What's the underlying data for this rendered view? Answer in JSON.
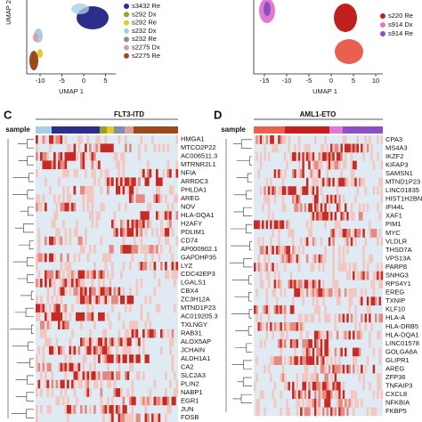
{
  "panel_a": {
    "y_label": "UMAP 2",
    "x_label": "UMAP 1",
    "xticks": [
      "-10",
      "-5",
      "0",
      "5"
    ],
    "legend": [
      {
        "name": "s3432 Re",
        "color": "#2b2f8a"
      },
      {
        "name": "s292 Dx",
        "color": "#9aa02a"
      },
      {
        "name": "s292 Re",
        "color": "#e4c92a"
      },
      {
        "name": "s232 Dx",
        "color": "#a9cde6"
      },
      {
        "name": "s232 Re",
        "color": "#7e8fa8"
      },
      {
        "name": "s2275 Dx",
        "color": "#d9a0a0"
      },
      {
        "name": "s2275 Re",
        "color": "#9a4a1c"
      }
    ]
  },
  "panel_b": {
    "x_label": "UMAP 1",
    "xticks": [
      "-15",
      "-10",
      "-5",
      "0",
      "5",
      "10"
    ],
    "legend": [
      {
        "name": "s220 Re",
        "color": "#c0201e"
      },
      {
        "name": "s914 Dx",
        "color": "#e07ad0"
      },
      {
        "name": "s914 Re",
        "color": "#8a4fc0"
      }
    ]
  },
  "panel_c": {
    "label": "C",
    "title": "FLT3-ITD",
    "sample_label": "sample",
    "genes": [
      "HMGA1",
      "MTCO2P22",
      "AC006511.3",
      "MTRNR2L1",
      "NFIA",
      "ARRDC3",
      "PHLDA1",
      "AREG",
      "NOV",
      "HLA-DQA1",
      "H2AFY",
      "PDLIM1",
      "CD74",
      "AP000902.1",
      "GAPDHP35",
      "LYZ",
      "CDC42EP3",
      "LGALS1",
      "CBX4",
      "ZC3H12A",
      "MTND1P23",
      "AC019205.3",
      "TXLNGY",
      "RAB31",
      "ALOX5AP",
      "JCHAIN",
      "ALDH1A1",
      "CA2",
      "SLC2A3",
      "PLIN2",
      "NABP1",
      "EGR1",
      "JUN",
      "FOSB"
    ]
  },
  "panel_d": {
    "label": "D",
    "title": "AML1-ETO",
    "sample_label": "sample",
    "genes": [
      "CPA3",
      "MS4A3",
      "IKZF2",
      "KIFAP3",
      "SAMSN1",
      "MTND1P23",
      "LINC01835",
      "HIST1H2BN",
      "IFI44L",
      "XAF1",
      "PIM1",
      "MYC",
      "VLDLR",
      "THSD7A",
      "VPS13A",
      "PARP8",
      "SNHG3",
      "RPS4Y1",
      "EREG",
      "TXNIP",
      "KLF10",
      "HLA-A",
      "HLA-DRB5",
      "HLA-DQA1",
      "LINC01578",
      "GOLGA8A",
      "GLIPR1",
      "AREG",
      "ZFP36",
      "TNFAIP3",
      "CXCL8",
      "NFKBIA",
      "FKBP5"
    ]
  }
}
